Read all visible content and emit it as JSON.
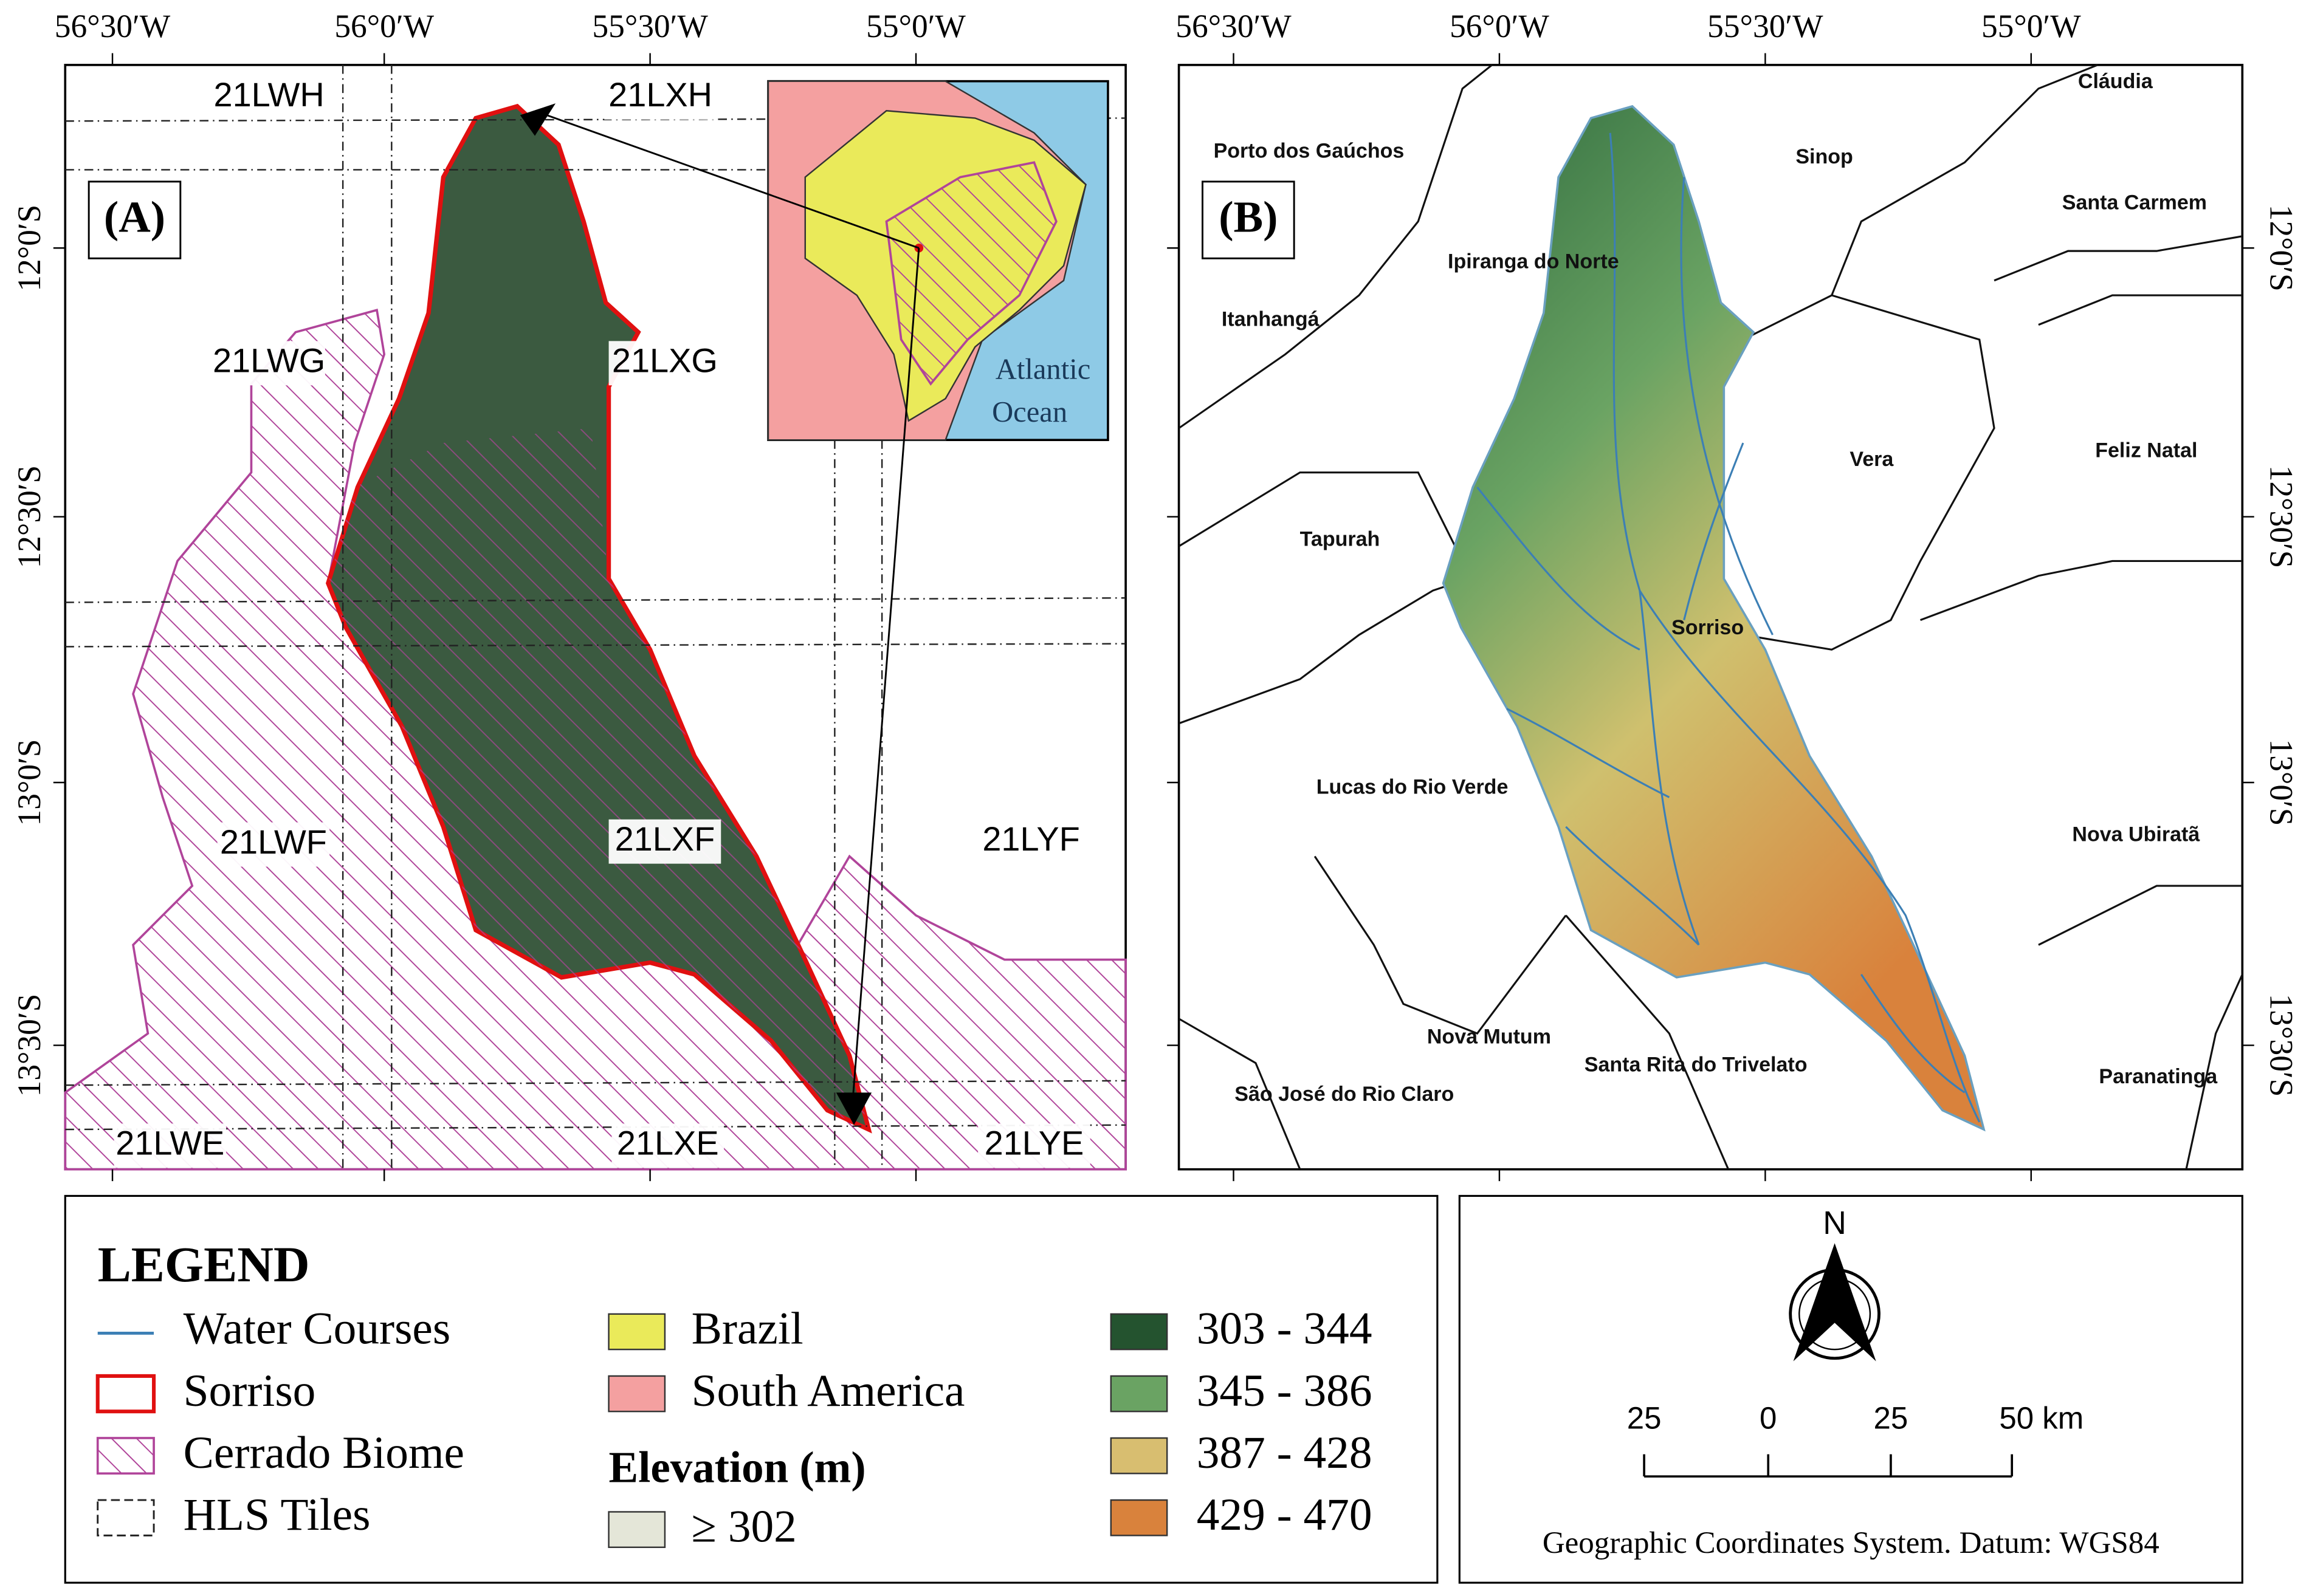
{
  "panel_a": {
    "label": "(A)",
    "top_ticks": [
      "56°30′W",
      "56°0′W",
      "55°30′W",
      "55°0′W"
    ],
    "left_ticks": [
      "12°0′S",
      "12°30′S",
      "13°0′S",
      "13°30′S"
    ],
    "tiles": [
      "21LWH",
      "21LXH",
      "21LWG",
      "21LXG",
      "21LWF",
      "21LXF",
      "21LYF",
      "21LWE",
      "21LXE",
      "21LYE"
    ],
    "inset": {
      "ocean": "Atlantic",
      "ocean_line2": "Ocean"
    }
  },
  "panel_b": {
    "label": "(B)",
    "top_ticks": [
      "56°30′W",
      "56°0′W",
      "55°30′W",
      "55°0′W"
    ],
    "right_ticks": [
      "12°0′S",
      "12°30′S",
      "13°0′S",
      "13°30′S"
    ],
    "municipalities": [
      "Cláudia",
      "Porto dos Gaúchos",
      "Sinop",
      "Santa Carmem",
      "Ipiranga do Norte",
      "Itanhangá",
      "Vera",
      "Feliz Natal",
      "Tapurah",
      "Sorriso",
      "Lucas do Rio Verde",
      "Nova Ubiratã",
      "Nova Mutum",
      "Santa Rita do Trivelato",
      "São José do Rio Claro",
      "Paranatinga"
    ]
  },
  "legend": {
    "title": "LEGEND",
    "items": [
      "Water Courses",
      "Sorriso",
      "Cerrado Biome",
      "HLS Tiles",
      "Brazil",
      "South America"
    ],
    "elevation_title": "Elevation (m)",
    "elevation_classes": [
      "≥ 302",
      "303 - 344",
      "345 - 386",
      "387 - 428",
      "429 - 470"
    ]
  },
  "scale": {
    "north": "N",
    "ticks": [
      "25",
      "0",
      "25",
      "50 km"
    ],
    "note": "Geographic Coordinates System. Datum: WGS84"
  }
}
